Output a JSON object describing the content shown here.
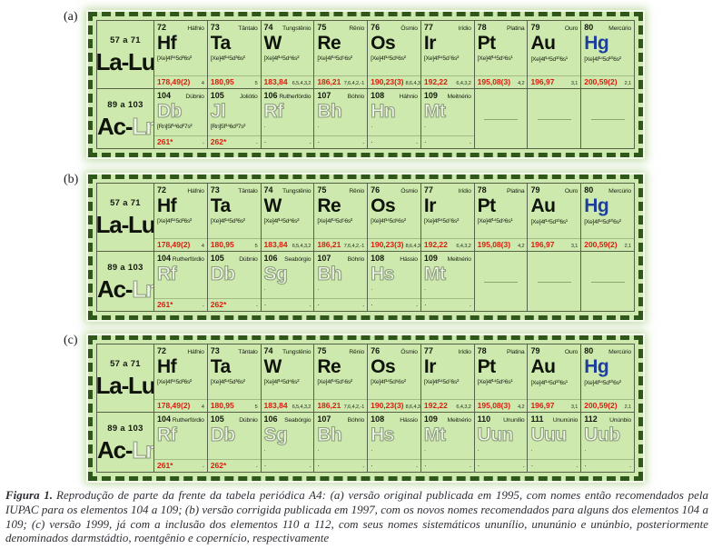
{
  "colors": {
    "panel_bg": "#cde9ad",
    "cut_border": "#2f571c",
    "grid": "#57624a",
    "mass_red": "#d81e10",
    "hg_blue": "#1d3e9c"
  },
  "row_labels": {
    "top": {
      "range": "57 a 71",
      "series": [
        {
          "text": "La-Lu",
          "style": "dark"
        }
      ]
    },
    "bottom": {
      "range": "89 a 103",
      "series": [
        {
          "text": "Ac-",
          "style": "dark"
        },
        {
          "text": "Lr",
          "style": "light"
        }
      ]
    }
  },
  "top_elements": [
    {
      "number": "72",
      "name": "Háfnio",
      "symbol": "Hf",
      "config": "[Xe]4f¹⁴5d²6s²",
      "mass": "178,49(2)",
      "ox": "4"
    },
    {
      "number": "73",
      "name": "Tântalo",
      "symbol": "Ta",
      "config": "[Xe]4f¹⁴5d³6s²",
      "mass": "180,95",
      "ox": "5"
    },
    {
      "number": "74",
      "name": "Tungstênio",
      "symbol": "W",
      "config": "[Xe]4f¹⁴5d⁴6s²",
      "mass": "183,84",
      "ox": "6,5,4,3,2"
    },
    {
      "number": "75",
      "name": "Rênio",
      "symbol": "Re",
      "config": "[Xe]4f¹⁴5d⁵6s²",
      "mass": "186,21",
      "ox": "7,6,4,2,-1"
    },
    {
      "number": "76",
      "name": "Ósmio",
      "symbol": "Os",
      "config": "[Xe]4f¹⁴5d⁶6s²",
      "mass": "190,23(3)",
      "ox": "8,6,4,3,2"
    },
    {
      "number": "77",
      "name": "Irídio",
      "symbol": "Ir",
      "config": "[Xe]4f¹⁴5d⁷6s²",
      "mass": "192,22",
      "ox": "6,4,3,2"
    },
    {
      "number": "78",
      "name": "Platina",
      "symbol": "Pt",
      "config": "[Xe]4f¹⁴5d⁹6s¹",
      "mass": "195,08(3)",
      "ox": "4,2"
    },
    {
      "number": "79",
      "name": "Ouro",
      "symbol": "Au",
      "config": "[Xe]4f¹⁴5d¹⁰6s¹",
      "mass": "196,97",
      "ox": "3,1"
    },
    {
      "number": "80",
      "name": "Mercúrio",
      "symbol": "Hg",
      "config": "[Xe]4f¹⁴5d¹⁰6s²",
      "mass": "200,59(2)",
      "ox": "2,1",
      "variant": "blue"
    }
  ],
  "panels": [
    {
      "label": "(a)",
      "bottom_cells": [
        {
          "number": "104",
          "name": "Dúbnio",
          "symbol": "Db",
          "config": "[Rn]5f¹⁴6d²7s²",
          "mass": "261*",
          "ox": "-",
          "variant": "light"
        },
        {
          "number": "105",
          "name": "Joliótio",
          "symbol": "Jl",
          "config": "[Rn]5f¹⁴6d³7s²",
          "mass": "262*",
          "ox": "-",
          "variant": "light"
        },
        {
          "number": "106",
          "name": "Rutherfórdio",
          "symbol": "Rf",
          "config": "·",
          "mass": "·",
          "ox": "-",
          "variant": "light"
        },
        {
          "number": "107",
          "name": "Bóhrio",
          "symbol": "Bh",
          "config": "·",
          "mass": "·",
          "ox": "-",
          "variant": "light"
        },
        {
          "number": "108",
          "name": "Háhnio",
          "symbol": "Hn",
          "config": "·",
          "mass": "·",
          "ox": "-",
          "variant": "light"
        },
        {
          "number": "109",
          "name": "Meitnério",
          "symbol": "Mt",
          "config": "·",
          "mass": "·",
          "ox": "-",
          "variant": "light"
        },
        {
          "empty": true
        },
        {
          "empty": true
        },
        {
          "empty": true
        }
      ]
    },
    {
      "label": "(b)",
      "bottom_cells": [
        {
          "number": "104",
          "name": "Rutherfórdio",
          "symbol": "Rf",
          "config": "",
          "mass": "261*",
          "ox": "-",
          "variant": "light"
        },
        {
          "number": "105",
          "name": "Dúbnio",
          "symbol": "Db",
          "config": "",
          "mass": "262*",
          "ox": "-",
          "variant": "light"
        },
        {
          "number": "106",
          "name": "Seabórgio",
          "symbol": "Sg",
          "config": "·",
          "mass": "·",
          "ox": "-",
          "variant": "light"
        },
        {
          "number": "107",
          "name": "Bóhrio",
          "symbol": "Bh",
          "config": "·",
          "mass": "·",
          "ox": "-",
          "variant": "light"
        },
        {
          "number": "108",
          "name": "Hássio",
          "symbol": "Hs",
          "config": "·",
          "mass": "·",
          "ox": "-",
          "variant": "light"
        },
        {
          "number": "109",
          "name": "Meitnério",
          "symbol": "Mt",
          "config": "·",
          "mass": "·",
          "ox": "-",
          "variant": "light"
        },
        {
          "empty": true
        },
        {
          "empty": true
        },
        {
          "empty": true
        }
      ]
    },
    {
      "label": "(c)",
      "bottom_cells": [
        {
          "number": "104",
          "name": "Rutherfórdio",
          "symbol": "Rf",
          "config": "",
          "mass": "261*",
          "ox": "-",
          "variant": "light"
        },
        {
          "number": "105",
          "name": "Dúbnio",
          "symbol": "Db",
          "config": "",
          "mass": "262*",
          "ox": "-",
          "variant": "light"
        },
        {
          "number": "106",
          "name": "Seabórgio",
          "symbol": "Sg",
          "config": "·",
          "mass": "·",
          "ox": "-",
          "variant": "light"
        },
        {
          "number": "107",
          "name": "Bóhrio",
          "symbol": "Bh",
          "config": "·",
          "mass": "·",
          "ox": "-",
          "variant": "light"
        },
        {
          "number": "108",
          "name": "Hássio",
          "symbol": "Hs",
          "config": "·",
          "mass": "·",
          "ox": "-",
          "variant": "light"
        },
        {
          "number": "109",
          "name": "Meitnério",
          "symbol": "Mt",
          "config": "·",
          "mass": "·",
          "ox": "-",
          "variant": "light"
        },
        {
          "number": "110",
          "name": "Ununílio",
          "symbol": "Uun",
          "config": "·",
          "mass": "·",
          "ox": "-",
          "variant": "light"
        },
        {
          "number": "111",
          "name": "Ununúnio",
          "symbol": "Uuu",
          "config": "·",
          "mass": "·",
          "ox": "-",
          "variant": "light"
        },
        {
          "number": "112",
          "name": "Unúnbio",
          "symbol": "Uub",
          "config": "·",
          "mass": "·",
          "ox": "-",
          "variant": "light"
        }
      ]
    }
  ],
  "caption": {
    "title": "Figura 1.",
    "text": "Reprodução de parte da frente da tabela periódica A4: (a) versão original publicada em 1995, com nomes então recomendados pela IUPAC para os elementos 104 a 109; (b) versão corrigida publicada em 1997, com os novos nomes recomendados para alguns dos elementos 104 a 109; (c) versão 1999, já com a inclusão dos elementos 110 a 112, com seus nomes sistemáticos ununílio, ununúnio e unúnbio, posteriormente denominados darmstádtio, roentgênio e copernício, respectivamente"
  }
}
